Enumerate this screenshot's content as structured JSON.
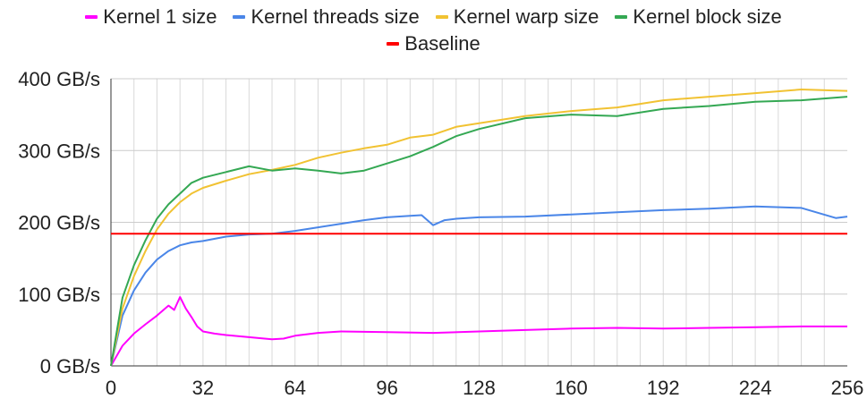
{
  "chart_data": {
    "type": "line",
    "title": "",
    "xlabel": "",
    "ylabel": "",
    "xlim": [
      0,
      256
    ],
    "ylim": [
      0,
      400
    ],
    "x_ticks": [
      0,
      32,
      64,
      96,
      128,
      160,
      192,
      224,
      256
    ],
    "y_ticks": [
      0,
      100,
      200,
      300,
      400
    ],
    "y_tick_labels": [
      "0 GB/s",
      "100 GB/s",
      "200 GB/s",
      "300 GB/s",
      "400 GB/s"
    ],
    "grid": "vertical",
    "legend_position": "top",
    "series": [
      {
        "name": "Kernel 1 size",
        "color": "#ff00ff",
        "x": [
          0,
          4,
          8,
          12,
          16,
          20,
          22,
          24,
          26,
          28,
          30,
          32,
          36,
          40,
          48,
          56,
          60,
          64,
          72,
          80,
          96,
          112,
          128,
          144,
          160,
          176,
          192,
          208,
          224,
          240,
          256
        ],
        "values": [
          0,
          28,
          45,
          58,
          70,
          84,
          78,
          96,
          80,
          68,
          55,
          48,
          45,
          43,
          40,
          37,
          38,
          42,
          46,
          48,
          47,
          46,
          48,
          50,
          52,
          53,
          52,
          53,
          54,
          55,
          55
        ]
      },
      {
        "name": "Kernel threads size",
        "color": "#4a86e8",
        "x": [
          0,
          4,
          8,
          12,
          16,
          20,
          24,
          28,
          32,
          40,
          48,
          56,
          64,
          72,
          80,
          88,
          96,
          104,
          108,
          112,
          116,
          120,
          128,
          144,
          160,
          176,
          192,
          208,
          224,
          240,
          252,
          256
        ],
        "values": [
          0,
          70,
          105,
          130,
          148,
          160,
          168,
          172,
          174,
          180,
          183,
          184,
          188,
          193,
          198,
          203,
          207,
          209,
          210,
          196,
          203,
          205,
          207,
          208,
          211,
          214,
          217,
          219,
          222,
          220,
          206,
          208
        ]
      },
      {
        "name": "Kernel warp size",
        "color": "#f1c232",
        "x": [
          0,
          4,
          8,
          12,
          16,
          20,
          24,
          28,
          32,
          40,
          48,
          56,
          64,
          72,
          80,
          88,
          96,
          104,
          112,
          120,
          128,
          144,
          160,
          176,
          192,
          208,
          224,
          240,
          256
        ],
        "values": [
          0,
          80,
          125,
          160,
          190,
          212,
          228,
          240,
          248,
          258,
          267,
          273,
          280,
          290,
          297,
          303,
          308,
          318,
          322,
          333,
          338,
          348,
          355,
          360,
          370,
          375,
          380,
          385,
          383
        ]
      },
      {
        "name": "Kernel block size",
        "color": "#34a853",
        "x": [
          0,
          4,
          8,
          12,
          16,
          20,
          24,
          28,
          32,
          40,
          48,
          56,
          64,
          72,
          80,
          88,
          96,
          104,
          112,
          120,
          128,
          144,
          160,
          176,
          192,
          208,
          224,
          240,
          256
        ],
        "values": [
          0,
          95,
          140,
          175,
          205,
          225,
          240,
          255,
          262,
          270,
          278,
          272,
          275,
          272,
          268,
          272,
          282,
          292,
          305,
          320,
          330,
          345,
          350,
          348,
          358,
          362,
          368,
          370,
          375
        ]
      },
      {
        "name": "Baseline",
        "color": "#ff0000",
        "x": [
          0,
          256
        ],
        "values": [
          184,
          184
        ]
      }
    ]
  }
}
